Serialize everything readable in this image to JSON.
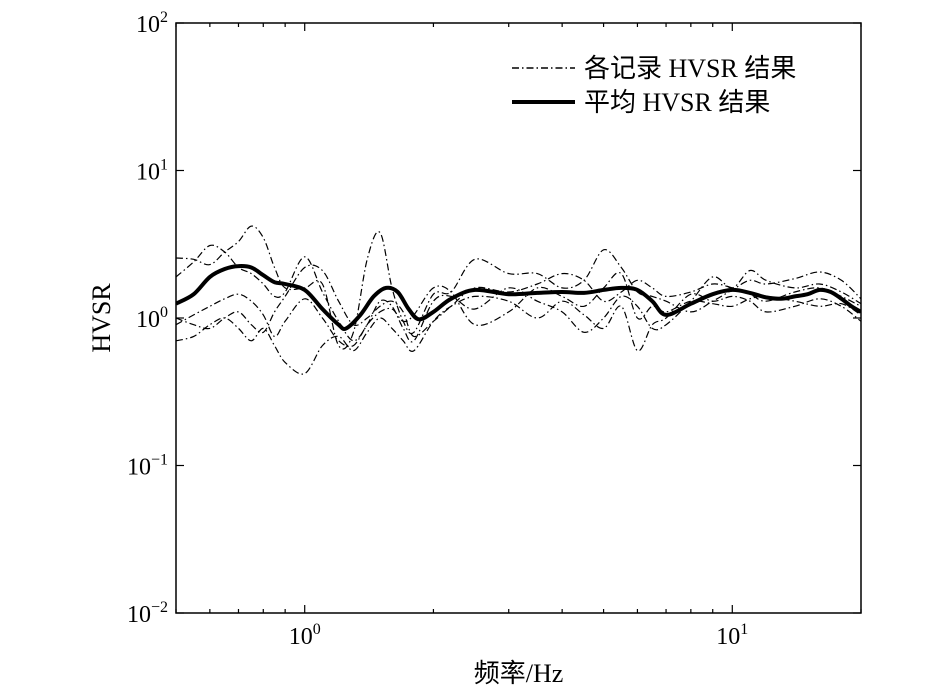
{
  "chart_data": {
    "type": "line",
    "title": "",
    "xlabel": "频率/Hz",
    "ylabel": "HVSR",
    "xscale": "log",
    "yscale": "log",
    "xlim": [
      0.5,
      20
    ],
    "ylim": [
      0.01,
      100
    ],
    "x_ticks": [
      {
        "value": 1,
        "base": "10",
        "exp": "0"
      },
      {
        "value": 10,
        "base": "10",
        "exp": "1"
      }
    ],
    "y_ticks": [
      {
        "value": 0.01,
        "base": "10",
        "exp": "−2"
      },
      {
        "value": 0.1,
        "base": "10",
        "exp": "−1"
      },
      {
        "value": 1,
        "base": "10",
        "exp": "0"
      },
      {
        "value": 10,
        "base": "10",
        "exp": "1"
      },
      {
        "value": 100,
        "base": "10",
        "exp": "2"
      }
    ],
    "grid": false,
    "legend": {
      "placement": "top-right",
      "entries": [
        {
          "label": "各记录 HVSR 结果",
          "style": "dashdot"
        },
        {
          "label": "平均 HVSR 结果",
          "style": "solid-thick"
        }
      ]
    },
    "series": [
      {
        "style": "solid-thick",
        "color": "#000000",
        "x": [
          0.5,
          0.55,
          0.6,
          0.65,
          0.7,
          0.75,
          0.8,
          0.85,
          0.9,
          1.0,
          1.1,
          1.2,
          1.25,
          1.35,
          1.45,
          1.55,
          1.65,
          1.75,
          1.85,
          2.0,
          2.2,
          2.5,
          3.0,
          3.5,
          4.0,
          4.5,
          5.0,
          5.5,
          6.0,
          6.5,
          7.0,
          8.0,
          9.0,
          10.0,
          11.0,
          12.0,
          13.0,
          14.0,
          15.0,
          16.0,
          17.0,
          18.0,
          19.0,
          20.0
        ],
        "y": [
          1.25,
          1.45,
          1.9,
          2.15,
          2.25,
          2.2,
          1.95,
          1.75,
          1.7,
          1.55,
          1.15,
          0.9,
          0.85,
          1.05,
          1.4,
          1.6,
          1.5,
          1.15,
          0.98,
          1.1,
          1.35,
          1.55,
          1.45,
          1.48,
          1.5,
          1.48,
          1.55,
          1.6,
          1.55,
          1.3,
          1.05,
          1.25,
          1.45,
          1.55,
          1.48,
          1.38,
          1.35,
          1.4,
          1.45,
          1.55,
          1.5,
          1.35,
          1.2,
          1.1
        ]
      },
      {
        "style": "dashdot",
        "color": "#000000",
        "x": [
          0.5,
          0.55,
          0.6,
          0.65,
          0.7,
          0.75,
          0.8,
          0.85,
          0.9,
          1.0,
          1.1,
          1.2,
          1.3,
          1.4,
          1.5,
          1.6,
          1.7,
          1.8,
          2.0,
          2.2,
          2.5,
          3.0,
          3.5,
          4.0,
          4.5,
          5.0,
          5.5,
          6.0,
          6.5,
          7.0,
          8.0,
          9.0,
          10.0,
          11.0,
          12.0,
          14.0,
          16.0,
          18.0,
          20.0
        ],
        "y": [
          2.55,
          2.5,
          2.3,
          2.8,
          3.3,
          4.2,
          3.5,
          2.2,
          1.6,
          1.6,
          1.7,
          0.65,
          0.8,
          2.5,
          3.8,
          1.6,
          0.95,
          0.8,
          1.45,
          1.5,
          2.5,
          2.0,
          2.0,
          1.6,
          1.8,
          2.9,
          2.2,
          1.5,
          1.4,
          1.3,
          1.1,
          1.3,
          1.55,
          1.8,
          1.7,
          1.85,
          2.05,
          1.8,
          1.35
        ]
      },
      {
        "style": "dashdot",
        "color": "#000000",
        "x": [
          0.5,
          0.55,
          0.6,
          0.65,
          0.7,
          0.75,
          0.8,
          0.85,
          0.9,
          1.0,
          1.1,
          1.2,
          1.3,
          1.4,
          1.5,
          1.6,
          1.7,
          1.8,
          2.0,
          2.2,
          2.5,
          3.0,
          3.5,
          4.0,
          4.5,
          5.0,
          5.5,
          6.0,
          6.5,
          7.0,
          8.0,
          9.0,
          10.0,
          11.0,
          12.0,
          14.0,
          16.0,
          18.0,
          20.0
        ],
        "y": [
          1.9,
          2.4,
          3.1,
          2.8,
          2.2,
          2.0,
          1.7,
          1.4,
          1.5,
          2.6,
          1.5,
          0.95,
          0.7,
          0.9,
          1.3,
          1.2,
          0.85,
          0.7,
          1.3,
          1.4,
          1.15,
          1.6,
          1.3,
          1.1,
          0.8,
          1.0,
          1.4,
          1.2,
          0.85,
          0.9,
          1.3,
          1.9,
          1.6,
          2.1,
          1.8,
          1.6,
          1.7,
          1.5,
          1.25
        ]
      },
      {
        "style": "dashdot",
        "color": "#000000",
        "x": [
          0.5,
          0.55,
          0.6,
          0.65,
          0.7,
          0.75,
          0.8,
          0.85,
          0.9,
          1.0,
          1.1,
          1.2,
          1.3,
          1.4,
          1.5,
          1.6,
          1.7,
          1.8,
          2.0,
          2.2,
          2.5,
          3.0,
          3.5,
          4.0,
          4.5,
          5.0,
          5.5,
          6.0,
          6.5,
          7.0,
          8.0,
          9.0,
          10.0,
          11.0,
          12.0,
          14.0,
          16.0,
          18.0,
          20.0
        ],
        "y": [
          0.7,
          0.75,
          0.9,
          1.0,
          0.85,
          0.7,
          0.85,
          0.65,
          0.5,
          0.42,
          0.65,
          0.75,
          0.6,
          0.8,
          1.0,
          0.85,
          0.7,
          0.6,
          0.95,
          1.2,
          1.4,
          1.3,
          1.0,
          1.3,
          1.05,
          0.85,
          1.2,
          0.6,
          0.9,
          1.0,
          1.45,
          1.3,
          1.4,
          1.3,
          1.1,
          1.2,
          1.35,
          1.2,
          0.95
        ]
      },
      {
        "style": "dashdot",
        "color": "#000000",
        "x": [
          0.5,
          0.55,
          0.6,
          0.65,
          0.7,
          0.75,
          0.8,
          0.85,
          0.9,
          1.0,
          1.1,
          1.2,
          1.3,
          1.4,
          1.5,
          1.6,
          1.7,
          1.8,
          2.0,
          2.2,
          2.5,
          3.0,
          3.5,
          4.0,
          4.5,
          5.0,
          5.5,
          6.0,
          6.5,
          7.0,
          8.0,
          9.0,
          10.0,
          11.0,
          12.0,
          14.0,
          16.0,
          18.0,
          20.0
        ],
        "y": [
          0.9,
          1.05,
          1.2,
          1.35,
          1.45,
          1.3,
          1.05,
          0.75,
          0.95,
          1.35,
          1.0,
          0.7,
          0.65,
          0.9,
          1.1,
          1.15,
          0.95,
          1.05,
          1.6,
          1.5,
          0.9,
          1.1,
          1.6,
          1.4,
          1.2,
          1.6,
          2.0,
          1.0,
          1.2,
          1.1,
          1.3,
          1.25,
          1.2,
          1.35,
          1.4,
          1.3,
          1.2,
          1.25,
          1.05
        ]
      },
      {
        "style": "dashdot",
        "color": "#000000",
        "x": [
          0.5,
          0.55,
          0.6,
          0.65,
          0.7,
          0.75,
          0.8,
          0.85,
          0.9,
          1.0,
          1.1,
          1.2,
          1.3,
          1.4,
          1.5,
          1.6,
          1.7,
          1.8,
          2.0,
          2.2,
          2.5,
          3.0,
          3.5,
          4.0,
          4.5,
          5.0,
          5.5,
          6.0,
          6.5,
          7.0,
          8.0,
          9.0,
          10.0,
          11.0,
          12.0,
          14.0,
          16.0,
          18.0,
          20.0
        ],
        "y": [
          1.0,
          0.9,
          0.85,
          1.0,
          1.1,
          0.9,
          0.8,
          1.1,
          1.4,
          2.2,
          2.1,
          1.3,
          0.9,
          1.0,
          1.2,
          1.3,
          1.1,
          0.75,
          0.95,
          1.2,
          1.6,
          1.5,
          1.7,
          2.0,
          1.8,
          1.3,
          1.5,
          1.8,
          1.6,
          1.4,
          1.5,
          1.7,
          1.6,
          1.45,
          1.3,
          1.5,
          1.6,
          1.4,
          1.2
        ]
      }
    ]
  }
}
